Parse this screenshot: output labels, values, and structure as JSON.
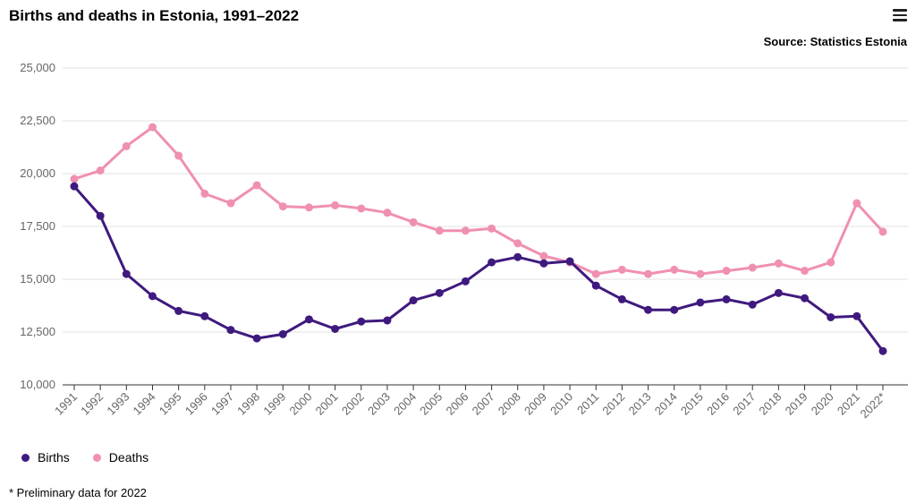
{
  "header": {
    "title": "Births and deaths in Estonia, 1991–2022",
    "source": "Source: Statistics Estonia",
    "menu_icon": "hamburger-menu-icon"
  },
  "footnote": "* Preliminary data for 2022",
  "colors": {
    "births": "#3f1a7e",
    "deaths": "#f090b0",
    "grid": "#e0e0e0",
    "axis": "#333333",
    "tick_text": "#666666"
  },
  "chart_data": {
    "type": "line",
    "title": "Births and deaths in Estonia, 1991–2022",
    "xlabel": "",
    "ylabel": "",
    "categories": [
      "1991",
      "1992",
      "1993",
      "1994",
      "1995",
      "1996",
      "1997",
      "1998",
      "1999",
      "2000",
      "2001",
      "2002",
      "2003",
      "2004",
      "2005",
      "2006",
      "2007",
      "2008",
      "2009",
      "2010",
      "2011",
      "2012",
      "2013",
      "2014",
      "2015",
      "2016",
      "2017",
      "2018",
      "2019",
      "2020",
      "2021",
      "2022*"
    ],
    "ylim": [
      10000,
      25000
    ],
    "yticks": [
      10000,
      12500,
      15000,
      17500,
      20000,
      22500,
      25000
    ],
    "ytick_labels": [
      "10,000",
      "12,500",
      "15,000",
      "17,500",
      "20,000",
      "22,500",
      "25,000"
    ],
    "grid": true,
    "legend_position": "bottom-left",
    "series": [
      {
        "name": "Births",
        "values": [
          19400,
          18000,
          15250,
          14200,
          13500,
          13250,
          12600,
          12200,
          12400,
          13100,
          12650,
          13000,
          13050,
          14000,
          14350,
          14900,
          15800,
          16050,
          15750,
          15850,
          14700,
          14050,
          13550,
          13550,
          13900,
          14050,
          13800,
          14350,
          14100,
          13200,
          13250,
          11600
        ]
      },
      {
        "name": "Deaths",
        "values": [
          19750,
          20150,
          21300,
          22200,
          20850,
          19050,
          18600,
          19450,
          18450,
          18400,
          18500,
          18350,
          18150,
          17700,
          17300,
          17300,
          17400,
          16700,
          16100,
          15800,
          15250,
          15450,
          15250,
          15450,
          15250,
          15400,
          15550,
          15750,
          15400,
          15800,
          18600,
          17250
        ]
      }
    ]
  },
  "legend": {
    "items": [
      {
        "label": "Births"
      },
      {
        "label": "Deaths"
      }
    ]
  }
}
